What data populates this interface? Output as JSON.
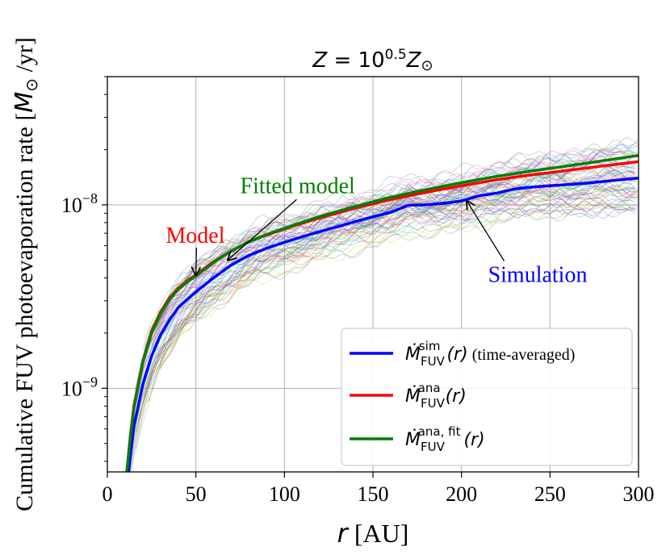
{
  "chart_data": {
    "type": "line",
    "title": "Z = 10^0.5 Z_⊙",
    "title_parts": {
      "z": "Z",
      "eq": " = 10",
      "exp": "0.5",
      "zsun": "Z",
      "sun": "⊙"
    },
    "xlabel": "r [AU]",
    "xlabel_parts": {
      "var": "r",
      "unit": " [AU]"
    },
    "ylabel": "Cumulative FUV photoevaporation rate [M_⊙/yr]",
    "ylabel_parts": {
      "text": "Cumulative FUV photoevaporation rate [",
      "m": "M",
      "sun": "⊙",
      "unit": " /yr]"
    },
    "xlim": [
      0,
      300
    ],
    "ylim": [
      3.5e-10,
      5e-08
    ],
    "yscale": "log",
    "x_ticks": [
      0,
      50,
      100,
      150,
      200,
      250,
      300
    ],
    "x_tick_labels": [
      "0",
      "50",
      "100",
      "150",
      "200",
      "250",
      "300"
    ],
    "y_ticks": [
      1e-09,
      1e-08
    ],
    "y_tick_labels": [
      {
        "base": "10",
        "exp": "−9"
      },
      {
        "base": "10",
        "exp": "−8"
      }
    ],
    "grid": true,
    "legend_position": "lower-right",
    "series": [
      {
        "name": "simulation",
        "legend_main": "Ṁ",
        "legend_sub": "FUV",
        "legend_sup": "sim",
        "legend_arg": "(r)",
        "legend_extra": " (time-averaged)",
        "color": "#0000ff",
        "x": [
          12,
          15,
          20,
          25,
          30,
          35,
          40,
          45,
          50,
          60,
          70,
          80,
          90,
          100,
          110,
          120,
          130,
          140,
          150,
          160,
          170,
          180,
          190,
          200,
          210,
          220,
          230,
          240,
          250,
          260,
          270,
          280,
          290,
          300
        ],
        "values": [
          3.5e-10,
          6.2e-10,
          1.05e-09,
          1.5e-09,
          1.95e-09,
          2.35e-09,
          2.75e-09,
          3.05e-09,
          3.35e-09,
          4e-09,
          4.7e-09,
          5.3e-09,
          5.8e-09,
          6.25e-09,
          6.7e-09,
          7.15e-09,
          7.6e-09,
          8.1e-09,
          8.6e-09,
          9.1e-09,
          9.95e-09,
          1e-08,
          1.02e-08,
          1.05e-08,
          1.12e-08,
          1.16e-08,
          1.22e-08,
          1.25e-08,
          1.27e-08,
          1.29e-08,
          1.31e-08,
          1.34e-08,
          1.37e-08,
          1.4e-08
        ]
      },
      {
        "name": "analytic",
        "legend_main": "Ṁ",
        "legend_sub": "FUV",
        "legend_sup": "ana",
        "legend_arg": "(r)",
        "legend_extra": "",
        "color": "#ff0000",
        "x": [
          11,
          13,
          15,
          20,
          25,
          30,
          35,
          40,
          45,
          50,
          60,
          70,
          80,
          90,
          100,
          120,
          140,
          160,
          180,
          200,
          220,
          240,
          260,
          280,
          300
        ],
        "values": [
          3.5e-10,
          5.5e-10,
          8e-10,
          1.4e-09,
          2.05e-09,
          2.6e-09,
          3.1e-09,
          3.5e-09,
          3.85e-09,
          4.15e-09,
          4.9e-09,
          5.6e-09,
          6.3e-09,
          6.85e-09,
          7.4e-09,
          8.5e-09,
          9.6e-09,
          1.07e-08,
          1.17e-08,
          1.27e-08,
          1.37e-08,
          1.46e-08,
          1.54e-08,
          1.63e-08,
          1.72e-08
        ]
      },
      {
        "name": "fitted",
        "legend_main": "Ṁ",
        "legend_sub": "FUV",
        "legend_sup": "ana, fit",
        "legend_arg": "(r)",
        "legend_extra": "",
        "color": "#008000",
        "x": [
          11,
          13,
          15,
          20,
          25,
          30,
          35,
          40,
          45,
          50,
          60,
          70,
          80,
          90,
          100,
          120,
          140,
          160,
          180,
          200,
          220,
          240,
          260,
          280,
          300
        ],
        "values": [
          3.5e-10,
          5.4e-10,
          7.8e-10,
          1.38e-09,
          2e-09,
          2.55e-09,
          3.05e-09,
          3.45e-09,
          3.8e-09,
          4.1e-09,
          4.85e-09,
          5.6e-09,
          6.3e-09,
          6.9e-09,
          7.45e-09,
          8.65e-09,
          9.8e-09,
          1.1e-08,
          1.21e-08,
          1.32e-08,
          1.43e-08,
          1.53e-08,
          1.63e-08,
          1.74e-08,
          1.86e-08
        ]
      }
    ],
    "background_traces": {
      "description": "many thin semi-transparent snapshot curves",
      "count": 70
    },
    "annotations": [
      {
        "text": "Model",
        "color": "#ff0000",
        "text_x": 33,
        "text_y": 6.2e-09,
        "arrow_x": 50,
        "arrow_y": 4.15e-09
      },
      {
        "text": "Fitted model",
        "color": "#008000",
        "text_x": 75,
        "text_y": 1.16e-08,
        "arrow_x": 68,
        "arrow_y": 5e-09
      },
      {
        "text": "Simulation",
        "color": "#0000ff",
        "text_x": 215,
        "text_y": 3.8e-09,
        "arrow_x": 203,
        "arrow_y": 1.05e-08
      }
    ]
  }
}
